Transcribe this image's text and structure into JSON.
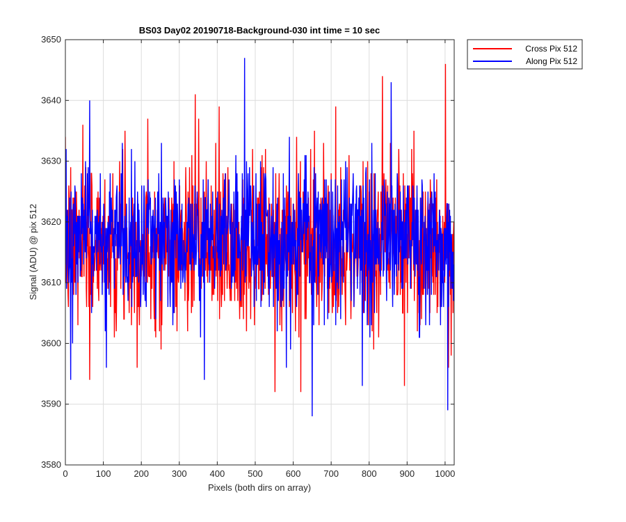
{
  "chart_data": {
    "type": "line",
    "title": "BS03 Day02 20190718-Background-030 int time = 10 sec",
    "xlabel": "Pixels (both dirs on array)",
    "ylabel": "Signal (ADU) @ pix 512",
    "xlim": [
      0,
      1024
    ],
    "ylim": [
      3580,
      3650
    ],
    "xticks": [
      "0",
      "100",
      "200",
      "300",
      "400",
      "500",
      "600",
      "700",
      "800",
      "900",
      "1000"
    ],
    "yticks": [
      "3580",
      "3590",
      "3600",
      "3610",
      "3620",
      "3630",
      "3640",
      "3650"
    ],
    "grid": true,
    "legend_position": "outside-top-right",
    "n_points": 1024,
    "series": [
      {
        "name": "Cross Pix 512",
        "color": "#ff0000",
        "mean": 3616,
        "std": 6.5,
        "seed": 7,
        "extremes": [
          [
            64,
            3594
          ],
          [
            157,
            3635
          ],
          [
            342,
            3641
          ],
          [
            405,
            3639
          ],
          [
            552,
            3592
          ],
          [
            620,
            3592
          ],
          [
            712,
            3639
          ],
          [
            835,
            3644
          ],
          [
            893,
            3593
          ],
          [
            1001,
            3646
          ],
          [
            1016,
            3598
          ]
        ]
      },
      {
        "name": "Along Pix 512",
        "color": "#0000ff",
        "mean": 3617,
        "std": 6.0,
        "seed": 13,
        "extremes": [
          [
            14,
            3594
          ],
          [
            64,
            3640
          ],
          [
            108,
            3596
          ],
          [
            366,
            3594
          ],
          [
            472,
            3647
          ],
          [
            582,
            3596
          ],
          [
            650,
            3588
          ],
          [
            782,
            3593
          ],
          [
            858,
            3643
          ],
          [
            1007,
            3589
          ]
        ]
      }
    ]
  }
}
